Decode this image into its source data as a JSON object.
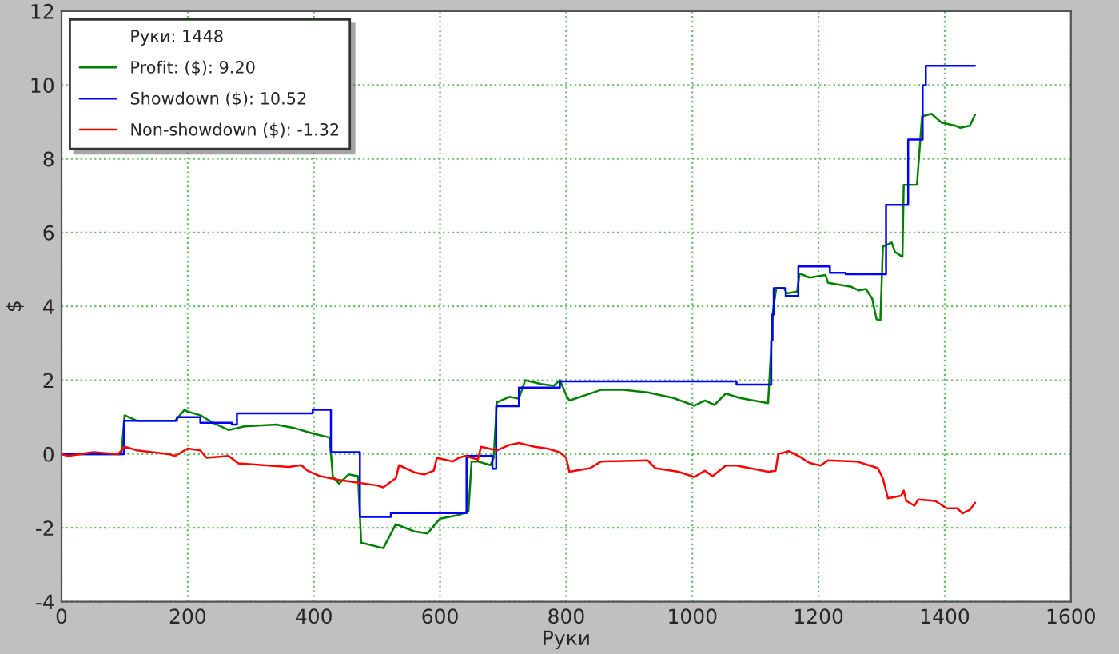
{
  "chart_data": {
    "type": "line",
    "xlabel": "Руки",
    "ylabel": "$",
    "legend_title": "Руки: 1448",
    "xlim": [
      0,
      1600
    ],
    "xticks": [
      0,
      200,
      400,
      600,
      800,
      1000,
      1200,
      1400,
      1600
    ],
    "ylim": [
      -4,
      12
    ],
    "yticks": [
      -4,
      -2,
      0,
      2,
      4,
      6,
      8,
      10,
      12
    ],
    "grid": true,
    "legend": "top left",
    "line_style": "solid",
    "marker": "none",
    "series": [
      {
        "name": "Profit: ($): 9.20",
        "color": "#008000",
        "x": [
          0,
          95,
          100,
          120,
          180,
          195,
          200,
          220,
          240,
          265,
          290,
          340,
          370,
          400,
          425,
          430,
          440,
          455,
          470,
          475,
          510,
          530,
          560,
          580,
          600,
          630,
          645,
          650,
          660,
          680,
          685,
          690,
          710,
          725,
          735,
          760,
          780,
          790,
          800,
          805,
          855,
          890,
          929,
          970,
          1003,
          1020,
          1035,
          1053,
          1075,
          1120,
          1125,
          1127,
          1133,
          1145,
          1150,
          1166,
          1170,
          1186,
          1211,
          1215,
          1252,
          1264,
          1275,
          1285,
          1292,
          1298,
          1302,
          1316,
          1321,
          1333,
          1335,
          1356,
          1364,
          1379,
          1395,
          1416,
          1425,
          1440,
          1448
        ],
        "values": [
          0,
          0,
          1.05,
          0.9,
          0.9,
          1.2,
          1.15,
          1.05,
          0.85,
          0.65,
          0.75,
          0.8,
          0.7,
          0.55,
          0.45,
          -0.6,
          -0.8,
          -0.55,
          -0.6,
          -2.4,
          -2.55,
          -1.9,
          -2.1,
          -2.15,
          -1.75,
          -1.65,
          -1.55,
          -0.2,
          -0.2,
          -0.3,
          -0.1,
          1.4,
          1.55,
          1.5,
          2.0,
          1.9,
          1.85,
          2.0,
          1.6,
          1.45,
          1.74,
          1.74,
          1.67,
          1.52,
          1.31,
          1.45,
          1.33,
          1.64,
          1.52,
          1.38,
          2.9,
          3.78,
          4.5,
          4.5,
          4.35,
          4.4,
          4.89,
          4.78,
          4.85,
          4.64,
          4.53,
          4.43,
          4.47,
          4.21,
          3.65,
          3.62,
          5.62,
          5.73,
          5.48,
          5.34,
          7.29,
          7.3,
          9.15,
          9.22,
          8.98,
          8.9,
          8.84,
          8.9,
          9.2
        ]
      },
      {
        "name": "Showdown ($): 10.52",
        "color": "#0000ff",
        "x": [
          0,
          99,
          99,
          183,
          183,
          220,
          220,
          270,
          270,
          278,
          278,
          398,
          398,
          427,
          427,
          473,
          473,
          522,
          522,
          642,
          642,
          683,
          683,
          689,
          689,
          725,
          725,
          790,
          790,
          1070,
          1070,
          1125,
          1125,
          1127,
          1127,
          1129,
          1129,
          1148,
          1148,
          1168,
          1168,
          1218,
          1218,
          1243,
          1243,
          1307,
          1307,
          1342,
          1342,
          1365,
          1365,
          1370,
          1370,
          1448
        ],
        "values": [
          0,
          0,
          0.9,
          0.9,
          1.0,
          1.0,
          0.85,
          0.85,
          0.8,
          0.8,
          1.1,
          1.1,
          1.2,
          1.2,
          0.05,
          0.05,
          -1.7,
          -1.7,
          -1.6,
          -1.6,
          -0.05,
          -0.05,
          -0.4,
          -0.4,
          1.3,
          1.3,
          1.8,
          1.8,
          1.97,
          1.97,
          1.88,
          1.88,
          3.08,
          3.08,
          3.78,
          3.78,
          4.49,
          4.49,
          4.28,
          4.28,
          5.08,
          5.08,
          4.91,
          4.91,
          4.87,
          4.87,
          6.75,
          6.75,
          8.52,
          8.52,
          9.99,
          9.99,
          10.52,
          10.52
        ]
      },
      {
        "name": "Non-showdown ($): -1.32",
        "color": "#ff0000",
        "x": [
          0,
          10,
          50,
          90,
          100,
          120,
          170,
          180,
          200,
          220,
          230,
          265,
          280,
          320,
          360,
          380,
          390,
          410,
          440,
          460,
          500,
          510,
          530,
          535,
          560,
          575,
          590,
          595,
          620,
          630,
          640,
          660,
          665,
          690,
          710,
          725,
          750,
          770,
          790,
          800,
          805,
          838,
          855,
          929,
          941,
          978,
          1003,
          1020,
          1032,
          1053,
          1070,
          1120,
          1132,
          1136,
          1153,
          1169,
          1186,
          1203,
          1215,
          1261,
          1294,
          1302,
          1310,
          1331,
          1335,
          1339,
          1352,
          1358,
          1385,
          1403,
          1420,
          1428,
          1440,
          1448
        ],
        "values": [
          0,
          -0.05,
          0.05,
          0,
          0.2,
          0.1,
          0,
          -0.05,
          0.15,
          0.1,
          -0.1,
          -0.05,
          -0.25,
          -0.3,
          -0.35,
          -0.3,
          -0.45,
          -0.6,
          -0.7,
          -0.75,
          -0.85,
          -0.9,
          -0.65,
          -0.3,
          -0.5,
          -0.55,
          -0.45,
          -0.1,
          -0.2,
          -0.1,
          -0.05,
          -0.15,
          0.2,
          0.1,
          0.25,
          0.3,
          0.2,
          0.15,
          0.05,
          -0.1,
          -0.48,
          -0.38,
          -0.2,
          -0.17,
          -0.38,
          -0.48,
          -0.62,
          -0.45,
          -0.6,
          -0.31,
          -0.31,
          -0.48,
          -0.45,
          0.0,
          0.08,
          -0.06,
          -0.24,
          -0.31,
          -0.17,
          -0.2,
          -0.38,
          -0.66,
          -1.2,
          -1.13,
          -0.99,
          -1.27,
          -1.4,
          -1.23,
          -1.27,
          -1.47,
          -1.47,
          -1.61,
          -1.51,
          -1.32
        ]
      }
    ]
  }
}
